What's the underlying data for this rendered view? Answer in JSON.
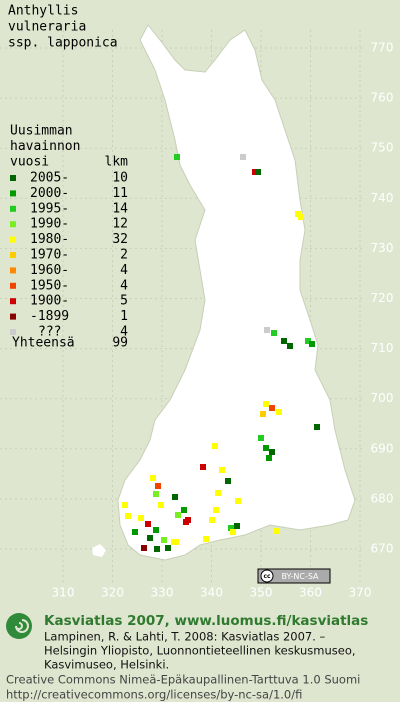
{
  "title": [
    "Anthyllis",
    "vulneraria",
    "ssp. lapponica"
  ],
  "legend": {
    "heading": [
      "Uusimman",
      "havainnon",
      "vuosi"
    ],
    "count_header": "lkm",
    "rows": [
      {
        "period": "2005-",
        "count": 10,
        "color": "#006600"
      },
      {
        "period": "2000-",
        "count": 11,
        "color": "#009900"
      },
      {
        "period": "1995-",
        "count": 14,
        "color": "#22cc22"
      },
      {
        "period": "1990-",
        "count": 12,
        "color": "#77ee22"
      },
      {
        "period": "1980-",
        "count": 32,
        "color": "#ffff00"
      },
      {
        "period": "1970-",
        "count": 2,
        "color": "#ffcc00"
      },
      {
        "period": "1960-",
        "count": 4,
        "color": "#ff8800"
      },
      {
        "period": "1950-",
        "count": 4,
        "color": "#ee4400"
      },
      {
        "period": "1900-",
        "count": 5,
        "color": "#cc0000"
      },
      {
        "period": "-1899",
        "count": 1,
        "color": "#880000"
      },
      {
        "period": "???",
        "count": 4,
        "color": "#cccccc"
      }
    ],
    "total": {
      "label": "Yhteensä",
      "count": 99
    }
  },
  "grid": {
    "y_labels": [
      770,
      760,
      750,
      740,
      730,
      720,
      710,
      700,
      690,
      680,
      670
    ],
    "x_labels": [
      310,
      320,
      330,
      340,
      350,
      360,
      370
    ]
  },
  "license_badge": {
    "icon": "cc",
    "text": "BY-NC-SA"
  },
  "footer": {
    "site": "Kasviatlas 2007, www.luomus.fi/kasviatlas",
    "citation": [
      "Lampinen, R. & Lahti, T. 2008: Kasviatlas 2007. –",
      "Helsingin Yliopisto, Luonnontieteellinen keskusmuseo,",
      "Kasvimuseo, Helsinki."
    ],
    "license": [
      "Creative Commons Nimeä-Epäkaupallinen-Tarttuva 1.0 Suomi",
      "http://creativecommons.org/licenses/by-nc-sa/1.0/fi"
    ]
  }
}
